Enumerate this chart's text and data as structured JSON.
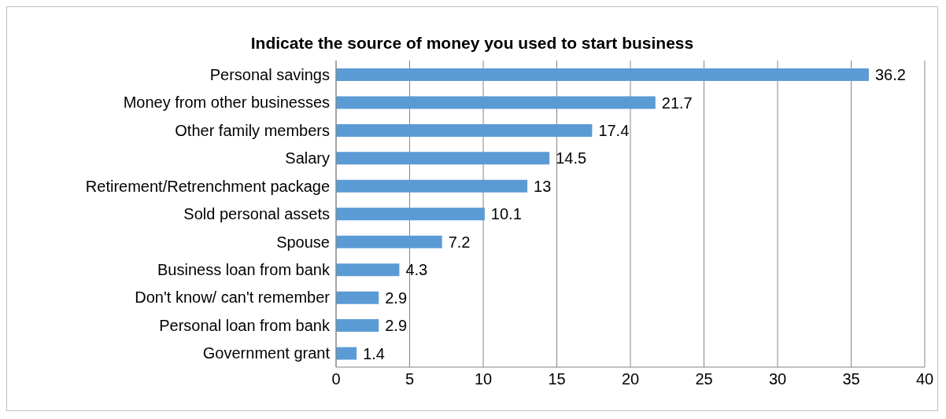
{
  "chart_data": {
    "type": "bar",
    "orientation": "horizontal",
    "title": "Indicate the source of money you used to start business",
    "categories": [
      "Personal savings",
      "Money from other businesses",
      "Other family members",
      "Salary",
      "Retirement/Retrenchment package",
      "Sold personal assets",
      "Spouse",
      "Business loan from bank",
      "Don't know/ can't remember",
      "Personal loan from bank",
      "Government grant"
    ],
    "values": [
      36.2,
      21.7,
      17.4,
      14.5,
      13,
      10.1,
      7.2,
      4.3,
      2.9,
      2.9,
      1.4
    ],
    "color": "#5b9bd5",
    "xlim": [
      0,
      40
    ],
    "xticks": [
      0,
      5,
      10,
      15,
      20,
      25,
      30,
      35,
      40
    ],
    "grid": "x",
    "data_labels": true,
    "legend": false
  }
}
